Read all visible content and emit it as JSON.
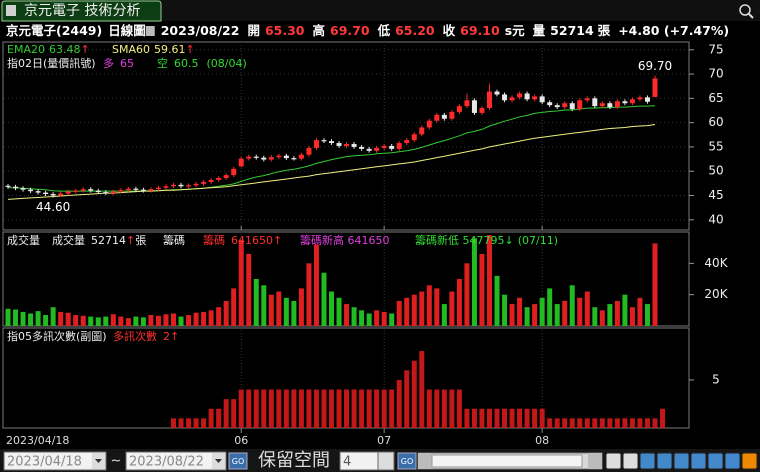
{
  "window": {
    "title": "京元電子 技術分析"
  },
  "header": {
    "stock": "京元電子(2449)",
    "period": "日線圖",
    "date": "2023/08/22",
    "fields": [
      {
        "label": "開",
        "value": "65.30"
      },
      {
        "label": "高",
        "value": "69.70"
      },
      {
        "label": "低",
        "value": "65.20"
      },
      {
        "label": "收",
        "value": "69.10"
      }
    ],
    "unit": "s元",
    "volume_label": "量",
    "volume": "52714",
    "volume_unit": "張",
    "change": "+4.80 (+7.47%)"
  },
  "chart_data": [
    {
      "type": "candlestick",
      "up_color": "#ff2a2a",
      "down_color": "#e8e8e8",
      "categories": [
        "2023/04/18",
        null,
        null,
        null,
        null,
        null,
        null,
        null,
        null,
        null,
        null,
        null,
        null,
        null,
        null,
        null,
        null,
        null,
        null,
        null,
        null,
        null,
        null,
        null,
        null,
        null,
        null,
        null,
        null,
        null,
        null,
        "06",
        null,
        null,
        null,
        null,
        null,
        null,
        null,
        null,
        null,
        null,
        null,
        null,
        null,
        null,
        null,
        null,
        null,
        null,
        "07",
        null,
        null,
        null,
        null,
        null,
        null,
        null,
        null,
        null,
        null,
        null,
        null,
        null,
        null,
        null,
        null,
        null,
        null,
        null,
        null,
        "08",
        null,
        null,
        null,
        null,
        null,
        null,
        null,
        null,
        null,
        null,
        null,
        null,
        null,
        null,
        null
      ],
      "ohlc": [
        [
          47.0,
          47.4,
          46.4,
          46.8
        ],
        [
          46.8,
          47.2,
          46.1,
          46.5
        ],
        [
          46.5,
          46.9,
          45.8,
          46.2
        ],
        [
          46.2,
          46.6,
          45.5,
          45.9
        ],
        [
          45.9,
          46.3,
          45.2,
          45.6
        ],
        [
          45.6,
          46.0,
          44.9,
          45.3
        ],
        [
          45.3,
          45.7,
          44.6,
          45.0
        ],
        [
          45.0,
          45.8,
          44.8,
          45.4
        ],
        [
          45.4,
          46.2,
          45.0,
          45.8
        ],
        [
          45.8,
          46.4,
          45.4,
          46.0
        ],
        [
          46.0,
          46.7,
          45.6,
          46.3
        ],
        [
          46.3,
          46.7,
          45.6,
          46.0
        ],
        [
          46.0,
          46.4,
          45.3,
          45.7
        ],
        [
          45.7,
          46.1,
          45.1,
          45.5
        ],
        [
          45.5,
          46.2,
          45.1,
          45.8
        ],
        [
          45.8,
          46.5,
          45.4,
          46.1
        ],
        [
          46.1,
          46.8,
          45.7,
          46.4
        ],
        [
          46.4,
          46.8,
          45.8,
          46.2
        ],
        [
          46.2,
          46.6,
          45.6,
          46.0
        ],
        [
          46.0,
          46.7,
          45.6,
          46.3
        ],
        [
          46.3,
          47.0,
          45.9,
          46.6
        ],
        [
          46.6,
          47.3,
          46.2,
          46.9
        ],
        [
          46.9,
          47.6,
          46.5,
          47.2
        ],
        [
          47.2,
          47.6,
          46.5,
          46.9
        ],
        [
          46.9,
          47.5,
          46.5,
          47.1
        ],
        [
          47.1,
          47.8,
          46.7,
          47.4
        ],
        [
          47.4,
          48.2,
          47.0,
          47.8
        ],
        [
          47.8,
          48.6,
          47.4,
          48.2
        ],
        [
          48.2,
          49.0,
          47.8,
          48.6
        ],
        [
          48.6,
          49.6,
          48.2,
          49.2
        ],
        [
          49.2,
          50.9,
          48.8,
          50.5
        ],
        [
          51.0,
          53.0,
          50.8,
          52.6
        ],
        [
          52.6,
          53.4,
          52.2,
          53.0
        ],
        [
          53.0,
          53.4,
          52.4,
          52.8
        ],
        [
          52.8,
          53.2,
          52.0,
          52.4
        ],
        [
          52.4,
          53.3,
          52.0,
          52.9
        ],
        [
          52.9,
          53.6,
          52.5,
          53.2
        ],
        [
          53.2,
          53.6,
          52.3,
          52.7
        ],
        [
          52.7,
          53.1,
          52.2,
          52.6
        ],
        [
          52.6,
          53.8,
          52.2,
          53.4
        ],
        [
          53.4,
          55.2,
          53.0,
          54.8
        ],
        [
          54.8,
          56.8,
          54.4,
          56.4
        ],
        [
          56.4,
          56.8,
          55.8,
          56.2
        ],
        [
          56.2,
          56.6,
          55.4,
          55.8
        ],
        [
          55.8,
          56.2,
          54.8,
          55.2
        ],
        [
          55.2,
          56.0,
          54.8,
          55.6
        ],
        [
          55.6,
          56.0,
          54.6,
          55.0
        ],
        [
          55.0,
          55.4,
          54.2,
          54.6
        ],
        [
          54.6,
          55.0,
          53.8,
          54.2
        ],
        [
          54.2,
          55.2,
          53.8,
          54.8
        ],
        [
          54.8,
          55.6,
          54.4,
          55.2
        ],
        [
          55.2,
          55.6,
          54.2,
          54.6
        ],
        [
          54.6,
          56.2,
          54.2,
          55.8
        ],
        [
          55.8,
          56.8,
          55.4,
          56.4
        ],
        [
          56.4,
          58.0,
          56.0,
          57.6
        ],
        [
          57.6,
          59.4,
          57.2,
          59.0
        ],
        [
          59.0,
          60.8,
          58.6,
          60.4
        ],
        [
          60.4,
          62.0,
          60.0,
          61.6
        ],
        [
          61.6,
          62.0,
          60.4,
          60.8
        ],
        [
          60.8,
          62.6,
          60.4,
          62.2
        ],
        [
          62.2,
          63.8,
          61.8,
          63.4
        ],
        [
          63.4,
          66.0,
          63.0,
          64.6
        ],
        [
          64.6,
          65.0,
          61.6,
          62.0
        ],
        [
          62.0,
          63.4,
          61.6,
          63.0
        ],
        [
          63.0,
          68.0,
          62.6,
          66.4
        ],
        [
          66.4,
          66.8,
          65.4,
          65.8
        ],
        [
          65.8,
          66.2,
          64.2,
          64.6
        ],
        [
          64.6,
          65.6,
          64.2,
          65.2
        ],
        [
          65.2,
          66.4,
          64.8,
          66.0
        ],
        [
          66.0,
          66.4,
          64.4,
          64.8
        ],
        [
          64.8,
          65.8,
          64.4,
          65.4
        ],
        [
          65.4,
          65.8,
          63.8,
          64.2
        ],
        [
          64.2,
          64.6,
          63.2,
          63.6
        ],
        [
          63.6,
          64.0,
          62.8,
          63.2
        ],
        [
          63.2,
          64.4,
          62.8,
          64.0
        ],
        [
          64.0,
          64.4,
          62.4,
          62.8
        ],
        [
          62.8,
          65.0,
          62.4,
          64.6
        ],
        [
          64.6,
          65.4,
          64.2,
          65.0
        ],
        [
          65.0,
          65.4,
          63.0,
          63.4
        ],
        [
          63.4,
          64.4,
          63.0,
          64.0
        ],
        [
          64.0,
          64.4,
          62.8,
          63.2
        ],
        [
          63.2,
          64.8,
          62.8,
          64.4
        ],
        [
          64.4,
          64.8,
          63.6,
          64.0
        ],
        [
          64.0,
          65.2,
          63.6,
          64.8
        ],
        [
          64.8,
          65.6,
          64.4,
          65.2
        ],
        [
          65.2,
          65.6,
          63.9,
          64.3
        ],
        [
          65.3,
          69.7,
          65.2,
          69.1
        ]
      ],
      "lines": [
        {
          "name": "EMA20",
          "color": "#33cc33",
          "legend_value": "63.48",
          "trend": "↑",
          "values": [
            46.6,
            46.6,
            46.5,
            46.4,
            46.3,
            46.2,
            46.0,
            45.9,
            45.9,
            45.9,
            45.9,
            45.9,
            45.9,
            45.9,
            45.9,
            45.9,
            45.9,
            45.9,
            45.9,
            46.0,
            46.0,
            46.1,
            46.2,
            46.2,
            46.3,
            46.4,
            46.5,
            46.7,
            46.9,
            47.1,
            47.4,
            47.9,
            48.4,
            48.8,
            49.1,
            49.5,
            49.9,
            50.2,
            50.4,
            50.7,
            51.1,
            51.6,
            52.0,
            52.4,
            52.7,
            53.0,
            53.2,
            53.3,
            53.4,
            53.6,
            53.7,
            53.8,
            54.0,
            54.2,
            54.5,
            54.9,
            55.4,
            55.9,
            56.3,
            56.8,
            57.3,
            57.9,
            58.2,
            58.6,
            59.3,
            59.8,
            60.3,
            60.7,
            61.2,
            61.5,
            61.9,
            62.1,
            62.3,
            62.4,
            62.6,
            62.6,
            62.8,
            63.0,
            63.0,
            63.1,
            63.1,
            63.2,
            63.2,
            63.3,
            63.4,
            63.4,
            63.48
          ]
        },
        {
          "name": "SMA60",
          "color": "#f0f080",
          "legend_value": "59.61",
          "trend": "↑",
          "values": [
            44.2,
            44.3,
            44.4,
            44.5,
            44.6,
            44.7,
            44.8,
            44.9,
            45.0,
            45.1,
            45.2,
            45.3,
            45.4,
            45.5,
            45.5,
            45.6,
            45.7,
            45.8,
            45.9,
            45.9,
            46.0,
            46.1,
            46.1,
            46.2,
            46.3,
            46.4,
            46.5,
            46.6,
            46.7,
            46.8,
            47.0,
            47.2,
            47.4,
            47.6,
            47.8,
            48.0,
            48.2,
            48.4,
            48.6,
            48.8,
            49.0,
            49.3,
            49.5,
            49.7,
            49.9,
            50.1,
            50.3,
            50.5,
            50.7,
            50.9,
            51.1,
            51.3,
            51.5,
            51.7,
            51.9,
            52.2,
            52.5,
            52.8,
            53.1,
            53.4,
            53.7,
            54.0,
            54.3,
            54.6,
            55.0,
            55.3,
            55.6,
            55.9,
            56.2,
            56.5,
            56.8,
            57.0,
            57.2,
            57.4,
            57.6,
            57.8,
            58.0,
            58.2,
            58.4,
            58.6,
            58.8,
            58.9,
            59.0,
            59.2,
            59.3,
            59.4,
            59.61
          ]
        }
      ],
      "signal": {
        "title": "指02日(量價訊號)",
        "bull_label": "多",
        "bull": "65",
        "bear_label": "空",
        "bear": "60.5",
        "date": "(08/04)"
      },
      "annotations": [
        {
          "value": 69.7,
          "label": "69.70"
        },
        {
          "value": 44.6,
          "label": "44.60"
        }
      ],
      "ylim": [
        37.9,
        76.6
      ],
      "yticks": [
        40,
        45,
        50,
        55,
        60,
        65,
        70,
        75
      ],
      "grid": true
    },
    {
      "type": "bar",
      "title": "成交量",
      "legend": "成交量",
      "legend_value": "52714",
      "trend": "↑",
      "unit": "張",
      "chip": "籌碼",
      "chip_value": "641650",
      "chip_trend": "↑",
      "chip_high": "籌碼新高 641650",
      "chip_low": "籌碼新低 547795",
      "chip_low_trend": "↓",
      "chip_low_date": "(07/11)",
      "up_color": "#e02020",
      "down_color": "#22bb22",
      "values": [
        11000,
        10500,
        9000,
        8000,
        9500,
        7000,
        12000,
        9000,
        8500,
        7000,
        6500,
        6000,
        5500,
        6000,
        7500,
        6000,
        5000,
        6000,
        5500,
        7000,
        6500,
        7500,
        8000,
        6000,
        7000,
        8500,
        9000,
        10000,
        12000,
        16000,
        24000,
        55000,
        46000,
        30000,
        26000,
        20000,
        22000,
        18000,
        16000,
        24000,
        40000,
        52000,
        34000,
        22000,
        18000,
        14000,
        12000,
        10000,
        8000,
        10000,
        9000,
        8000,
        16000,
        18000,
        20000,
        22000,
        26000,
        24000,
        14000,
        22000,
        30000,
        40000,
        56000,
        46000,
        58000,
        32000,
        20000,
        14000,
        18000,
        12000,
        14000,
        18000,
        24000,
        14000,
        16000,
        26000,
        18000,
        22000,
        12000,
        10000,
        14000,
        16000,
        20000,
        12000,
        18000,
        14000,
        52714
      ],
      "ylim": [
        0,
        60000
      ],
      "yticks": [
        {
          "value": 20000,
          "label": "20K"
        },
        {
          "value": 40000,
          "label": "40K"
        }
      ]
    },
    {
      "type": "bar",
      "title": "指05多訊次數(副圖)",
      "legend": "多訊次數",
      "legend_value": "2",
      "trend": "↑",
      "color": "#c41818",
      "values": [
        0,
        0,
        0,
        0,
        0,
        0,
        0,
        0,
        0,
        0,
        0,
        0,
        0,
        0,
        0,
        0,
        0,
        0,
        0,
        0,
        0,
        0,
        1,
        1,
        1,
        1,
        1,
        2,
        2,
        3,
        3,
        4,
        4,
        4,
        4,
        4,
        4,
        4,
        4,
        4,
        4,
        4,
        4,
        4,
        4,
        4,
        4,
        4,
        4,
        4,
        4,
        4,
        5,
        6,
        7,
        8,
        4,
        4,
        4,
        4,
        4,
        2,
        2,
        2,
        2,
        2,
        2,
        2,
        2,
        2,
        2,
        2,
        1,
        1,
        1,
        1,
        1,
        1,
        1,
        1,
        1,
        1,
        1,
        1,
        1,
        1,
        1,
        2
      ],
      "ylim": [
        0,
        10.4
      ],
      "yticks": [
        5
      ]
    }
  ],
  "toolbar": {
    "start": "2023/04/18",
    "separator": "~",
    "end": "2023/08/22",
    "go": "GO",
    "reserve_label": "保留空間",
    "reserve": "4"
  }
}
